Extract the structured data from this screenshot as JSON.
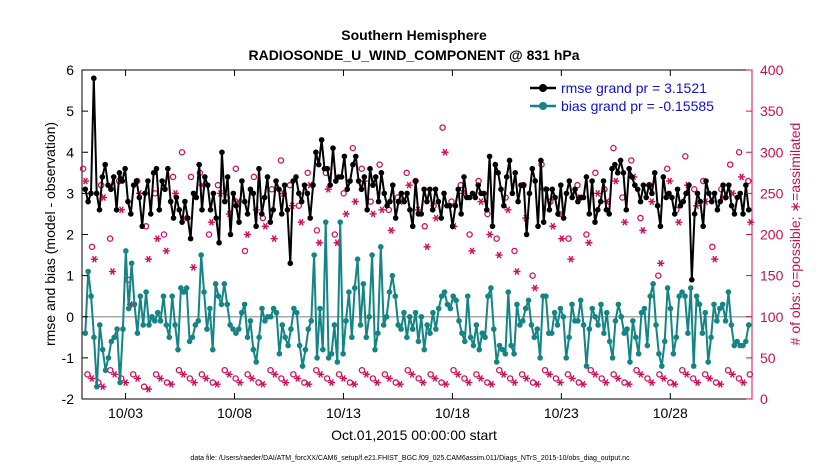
{
  "chart_data": {
    "type": "line",
    "title": "Southern Hemisphere",
    "subtitle": "RADIOSONDE_U_WIND_COMPONENT @ 831 hPa",
    "xlabel": "Oct.01,2015 00:00:00 start",
    "ylabel": "rmse and bias (model - observation)",
    "ylabel_right": "# of obs: o=possible; ∗=assimilated",
    "ylim": [
      -2,
      6
    ],
    "ylim_right": [
      0,
      400
    ],
    "xlim": [
      0.5,
      31.25
    ],
    "x_ticks": [
      2.5,
      7.5,
      12.5,
      17.5,
      22.5,
      27.5
    ],
    "x_tick_labels": [
      "10/03",
      "10/08",
      "10/13",
      "10/18",
      "10/23",
      "10/28"
    ],
    "y_ticks": [
      -2,
      -1,
      0,
      1,
      2,
      3,
      4,
      5,
      6
    ],
    "y_tick_labels": [
      "-2",
      "-1",
      "0",
      "1",
      "2",
      "3",
      "4",
      "5",
      "6"
    ],
    "y_ticks_right": [
      0,
      50,
      100,
      150,
      200,
      250,
      300,
      350,
      400
    ],
    "y_tick_labels_right": [
      "0",
      "50",
      "100",
      "150",
      "200",
      "250",
      "300",
      "350",
      "400"
    ],
    "footer": "data file: /Users/raeder/DAI/ATM_forcXX/CAM6_setup/f.e21.FHIST_BGC.f09_025.CAM6assim.011/Diags_NTrS_2015-10/obs_diag_output.nc",
    "colors": {
      "rmse": "#000000",
      "bias": "#148484",
      "obs": "#d0105a",
      "zero_line": "#aaaaaa"
    },
    "legend_position": "top-right",
    "series": [
      {
        "name": "rmse grand pr = 3.1521",
        "color": "#000000",
        "values": [
          3.1,
          2.8,
          3.0,
          5.8,
          3.0,
          2.6,
          3.4,
          3.7,
          3.2,
          3.1,
          3.4,
          2.6,
          3.5,
          3.3,
          3.6,
          2.8,
          2.5,
          3.2,
          3.3,
          2.9,
          2.2,
          3.0,
          3.3,
          2.5,
          3.5,
          3.6,
          2.6,
          3.3,
          3.1,
          3.6,
          2.8,
          2.4,
          2.9,
          2.6,
          2.3,
          2.8,
          2.4,
          1.9,
          3.0,
          2.9,
          3.7,
          2.6,
          3.4,
          3.2,
          2.6,
          3.0,
          2.4,
          1.8,
          4.0,
          2.8,
          3.4,
          2.0,
          3.0,
          2.7,
          2.3,
          3.3,
          2.8,
          2.5,
          3.1,
          3.0,
          2.2,
          3.6,
          2.5,
          2.9,
          3.4,
          2.3,
          2.6,
          3.3,
          3.1,
          2.5,
          3.2,
          2.6,
          1.3,
          3.3,
          3.4,
          3.0,
          2.8,
          3.2,
          3.0,
          2.4,
          3.2,
          4.0,
          3.7,
          4.3,
          3.6,
          3.6,
          3.2,
          4.1,
          3.3,
          3.4,
          3.4,
          3.9,
          3.1,
          3.3,
          3.7,
          3.9,
          3.3,
          3.1,
          3.4,
          2.6,
          3.6,
          3.2,
          3.4,
          2.8,
          3.5,
          3.0,
          2.7,
          2.8,
          3.2,
          2.4,
          2.8,
          3.0,
          2.8,
          3.0,
          2.6,
          2.2,
          3.3,
          2.5,
          2.5,
          3.1,
          2.8,
          3.1,
          2.6,
          3.1,
          2.8,
          2.4,
          3.0,
          2.7,
          2.7,
          2.2,
          2.7,
          3.1,
          2.5,
          3.4,
          2.9,
          2.9,
          3.0,
          2.9,
          3.2,
          3.0,
          3.0,
          2.6,
          3.9,
          2.2,
          3.7,
          3.5,
          3.1,
          2.7,
          3.4,
          3.8,
          3.0,
          3.5,
          2.8,
          3.2,
          3.2,
          2.0,
          3.0,
          3.6,
          3.3,
          2.2,
          3.8,
          2.3,
          3.1,
          2.6,
          3.1,
          2.9,
          2.5,
          3.2,
          2.4,
          3.0,
          3.3,
          2.9,
          3.1,
          2.8,
          2.9,
          2.9,
          3.4,
          2.5,
          3.3,
          2.3,
          2.6,
          2.8,
          3.3,
          2.6,
          2.5,
          3.6,
          3.7,
          3.5,
          3.8,
          3.5,
          2.6,
          3.6,
          3.4,
          3.2,
          3.1,
          2.8,
          3.2,
          2.9,
          3.2,
          3.0,
          3.5,
          2.7,
          2.2,
          3.4,
          2.9,
          3.0,
          2.9,
          2.5,
          3.1,
          2.7,
          2.8,
          3.0,
          3.2,
          0.9,
          2.5,
          3.0,
          2.8,
          2.2,
          3.3,
          3.0,
          2.8,
          3.0,
          2.6,
          2.8,
          3.2,
          2.9,
          3.2,
          2.7,
          2.5,
          2.9,
          3.0,
          2.5,
          3.2,
          2.6
        ]
      },
      {
        "name": "bias grand pr = -0.15585",
        "color": "#148484",
        "values": [
          -0.4,
          1.1,
          0.5,
          -0.5,
          -1.7,
          -0.2,
          -0.8,
          -1.3,
          -1.0,
          -0.6,
          -0.5,
          -0.3,
          -1.6,
          -0.3,
          1.6,
          0.2,
          1.3,
          0.3,
          -0.4,
          0.5,
          -0.2,
          0.6,
          -0.2,
          0.0,
          -0.1,
          0.1,
          -0.1,
          0.5,
          -0.2,
          -0.5,
          0.5,
          -0.2,
          -0.8,
          0.7,
          0.6,
          0.7,
          -0.6,
          -0.5,
          -0.2,
          -0.1,
          1.5,
          0.6,
          -0.3,
          0.2,
          -0.8,
          0.8,
          0.5,
          0.3,
          0.8,
          0.3,
          -0.2,
          -0.3,
          -0.4,
          -0.3,
          0.1,
          0.3,
          -0.5,
          -0.1,
          -0.8,
          -1.1,
          -0.5,
          0.2,
          -0.1,
          0.0,
          0.0,
          0.2,
          0.1,
          -0.9,
          -0.2,
          -0.5,
          -0.7,
          -0.3,
          0.2,
          0.1,
          -0.7,
          -1.2,
          -0.8,
          -0.3,
          -0.1,
          1.5,
          -1.0,
          0.2,
          -0.8,
          2.3,
          -1.0,
          -0.9,
          -0.2,
          -1.1,
          2.3,
          -0.9,
          -0.1,
          0.6,
          -0.5,
          0.7,
          1.4,
          -0.2,
          0.8,
          -0.5,
          0.0,
          1.5,
          -0.8,
          -0.4,
          1.7,
          -0.2,
          0.0,
          0.6,
          1.0,
          0.5,
          -0.2,
          -0.3,
          0.1,
          -0.5,
          0.0,
          -0.3,
          0.1,
          -0.6,
          0.0,
          -0.8,
          -0.2,
          -0.4,
          0.1,
          -0.3,
          0.2,
          0.5,
          0.6,
          0.3,
          0.2,
          0.5,
          0.4,
          -0.1,
          -0.4,
          -0.6,
          0.5,
          -0.5,
          -0.7,
          -0.2,
          -0.8,
          -0.4,
          -0.5,
          0.5,
          0.7,
          -0.3,
          -1.1,
          -0.7,
          -0.8,
          -0.9,
          0.6,
          -0.7,
          -0.9,
          0.3,
          -0.2,
          -0.1,
          0.2,
          0.4,
          -0.2,
          -0.5,
          -0.3,
          -1.0,
          0.5,
          0.5,
          -0.4,
          -0.4,
          0.1,
          -0.2,
          0.2,
          0.0,
          -1.0,
          -0.5,
          0.3,
          -0.1,
          -0.1,
          0.4,
          -0.2,
          -1.2,
          -0.3,
          0.2,
          0.0,
          -0.2,
          0.3,
          -0.4,
          0.1,
          -0.6,
          -1.0,
          -0.1,
          0.3,
          0.0,
          -0.4,
          -0.3,
          -1.1,
          -0.1,
          -0.5,
          -0.9,
          0.1,
          0.2,
          -0.7,
          0.5,
          0.8,
          -0.2,
          -0.9,
          -1.2,
          -0.6,
          0.7,
          0.2,
          -0.9,
          -0.5,
          0.5,
          0.6,
          0.5,
          -0.4,
          0.7,
          -1.2,
          0.5,
          0.3,
          -0.4,
          0.1,
          -1.1,
          -0.5,
          0.3,
          -0.1,
          0.2,
          0.3,
          -0.1,
          0.6,
          -0.2,
          -0.7,
          -0.6,
          -0.7,
          -0.7,
          -0.6,
          -0.2
        ]
      }
    ],
    "obs_possible": {
      "marker": "o",
      "x": [
        0.55,
        0.96,
        1.38,
        1.79,
        2.2,
        2.61,
        3.03,
        3.44,
        3.85,
        4.26,
        4.68,
        5.09,
        5.5,
        5.91,
        6.33,
        6.74,
        7.15,
        7.56,
        7.98,
        8.39,
        8.8,
        9.21,
        9.63,
        10.04,
        10.45,
        10.86,
        11.28,
        11.69,
        12.1,
        12.51,
        12.93,
        13.34,
        13.75,
        14.16,
        14.58,
        14.99,
        15.4,
        15.81,
        16.23,
        16.64,
        17.05,
        17.46,
        17.88,
        18.29,
        18.7,
        19.11,
        19.53,
        19.94,
        20.35,
        20.76,
        21.18,
        21.59,
        22.0,
        22.41,
        22.83,
        23.24,
        23.65,
        24.06,
        24.48,
        24.89,
        25.3,
        25.71,
        26.13,
        26.54,
        26.95,
        27.36,
        27.78,
        28.19,
        28.6,
        29.01,
        29.43,
        29.84,
        30.25,
        30.66,
        31.08
      ],
      "values": [
        280,
        185,
        260,
        195,
        265,
        145,
        265,
        210,
        250,
        200,
        270,
        300,
        270,
        275,
        200,
        260,
        245,
        280,
        180,
        270,
        220,
        255,
        290,
        260,
        235,
        275,
        205,
        275,
        200,
        250,
        305,
        280,
        240,
        285,
        230,
        245,
        275,
        265,
        210,
        235,
        330,
        240,
        260,
        200,
        265,
        225,
        195,
        245,
        180,
        260,
        150,
        285,
        240,
        225,
        195,
        260,
        200,
        275,
        255,
        305,
        245,
        290,
        220,
        260,
        150,
        280,
        230,
        295,
        255,
        265,
        185,
        255,
        285,
        300,
        265
      ]
    },
    "obs_assimilated": {
      "marker": "*",
      "x": [
        0.66,
        1.07,
        1.49,
        1.9,
        2.31,
        2.72,
        3.14,
        3.55,
        3.96,
        4.37,
        4.79,
        5.2,
        5.61,
        6.02,
        6.44,
        6.85,
        7.26,
        7.67,
        8.09,
        8.5,
        8.91,
        9.32,
        9.74,
        10.15,
        10.56,
        10.97,
        11.39,
        11.8,
        12.21,
        12.62,
        13.04,
        13.45,
        13.86,
        14.27,
        14.69,
        15.1,
        15.51,
        15.92,
        16.34,
        16.75,
        17.16,
        17.57,
        17.99,
        18.4,
        18.81,
        19.22,
        19.64,
        20.05,
        20.46,
        20.87,
        21.29,
        21.7,
        22.11,
        22.52,
        22.94,
        23.35,
        23.76,
        24.17,
        24.59,
        25.0,
        25.41,
        25.82,
        26.24,
        26.65,
        27.06,
        27.47,
        27.89,
        28.3,
        28.71,
        29.12,
        29.54,
        29.95,
        30.36,
        30.77,
        31.19
      ],
      "values": [
        265,
        170,
        245,
        155,
        230,
        115,
        250,
        170,
        195,
        180,
        250,
        220,
        160,
        260,
        215,
        250,
        225,
        240,
        200,
        230,
        210,
        195,
        250,
        235,
        215,
        260,
        190,
        255,
        190,
        225,
        240,
        265,
        225,
        230,
        205,
        240,
        260,
        230,
        185,
        220,
        300,
        210,
        250,
        180,
        240,
        200,
        175,
        230,
        155,
        220,
        135,
        255,
        210,
        195,
        170,
        245,
        190,
        250,
        240,
        265,
        215,
        270,
        205,
        240,
        165,
        265,
        215,
        260,
        235,
        240,
        170,
        245,
        250,
        270,
        215
      ]
    },
    "obs_possible_low": {
      "marker": "o",
      "x": [
        0.75,
        1.25,
        1.8,
        2.3,
        2.85,
        3.35,
        3.9,
        4.4,
        4.95,
        5.45,
        6.0,
        6.5,
        7.05,
        7.55,
        8.1,
        8.6,
        9.15,
        9.65,
        10.2,
        10.7,
        11.25,
        11.75,
        12.3,
        12.8,
        13.35,
        13.85,
        14.4,
        14.9,
        15.45,
        15.95,
        16.5,
        17.0,
        17.55,
        18.05,
        18.6,
        19.1,
        19.65,
        20.15,
        20.7,
        21.2,
        21.75,
        22.25,
        22.8,
        23.3,
        23.85,
        24.35,
        24.9,
        25.4,
        25.95,
        26.45,
        27.0,
        27.5,
        28.05,
        28.55,
        29.1,
        29.6,
        30.15,
        30.65,
        31.15
      ],
      "values": [
        30,
        20,
        35,
        25,
        30,
        15,
        30,
        20,
        35,
        25,
        30,
        20,
        35,
        25,
        30,
        20,
        35,
        25,
        30,
        20,
        35,
        25,
        30,
        20,
        35,
        25,
        30,
        20,
        35,
        25,
        30,
        20,
        35,
        25,
        30,
        20,
        35,
        25,
        30,
        20,
        35,
        25,
        30,
        20,
        35,
        25,
        30,
        20,
        35,
        25,
        30,
        20,
        35,
        25,
        30,
        20,
        35,
        25,
        30
      ]
    },
    "obs_assimilated_low": {
      "marker": "*",
      "x": [
        0.95,
        1.45,
        2.0,
        2.5,
        3.05,
        3.55,
        4.1,
        4.6,
        5.15,
        5.65,
        6.2,
        6.7,
        7.25,
        7.75,
        8.3,
        8.8,
        9.35,
        9.85,
        10.4,
        10.9,
        11.45,
        11.95,
        12.5,
        13.0,
        13.55,
        14.05,
        14.6,
        15.1,
        15.65,
        16.15,
        16.7,
        17.2,
        17.75,
        18.25,
        18.8,
        19.3,
        19.85,
        20.35,
        20.9,
        21.4,
        21.95,
        22.45,
        23.0,
        23.5,
        24.05,
        24.55,
        25.1,
        25.6,
        26.15,
        26.65,
        27.2,
        27.7,
        28.25,
        28.75,
        29.3,
        29.8,
        30.35,
        30.85
      ],
      "values": [
        25,
        15,
        30,
        20,
        25,
        12,
        25,
        18,
        30,
        20,
        25,
        18,
        30,
        20,
        25,
        18,
        30,
        20,
        25,
        18,
        30,
        20,
        25,
        18,
        30,
        20,
        25,
        18,
        30,
        20,
        25,
        18,
        30,
        20,
        25,
        18,
        30,
        20,
        25,
        18,
        30,
        20,
        25,
        18,
        30,
        20,
        25,
        18,
        30,
        20,
        25,
        18,
        30,
        20,
        25,
        18,
        30,
        20
      ]
    }
  }
}
